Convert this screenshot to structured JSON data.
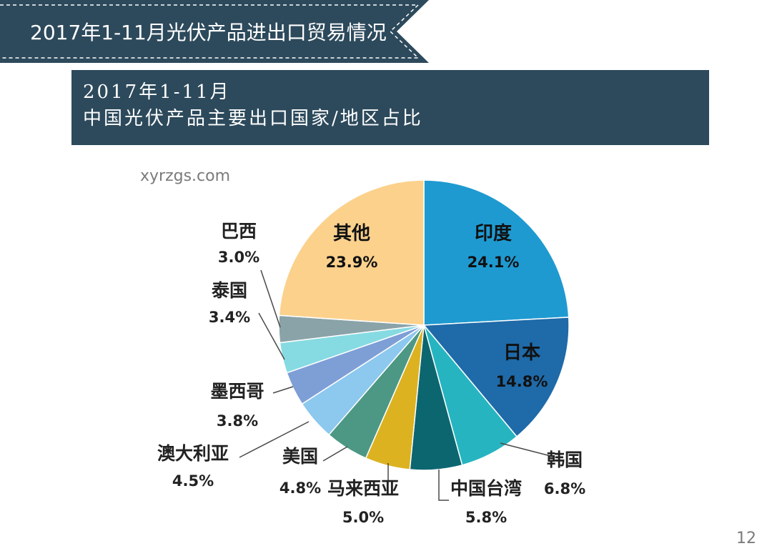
{
  "header": {
    "title": "2017年1-11月光伏产品进出口贸易情况",
    "colors": {
      "banner": "#2d4a5c",
      "dash": "#ffffff"
    }
  },
  "subtitle": {
    "line1": "2017年1-11月",
    "line2": "中国光伏产品主要出口国家/地区占比"
  },
  "watermark": "xyrzgs.com",
  "page_number": "12",
  "chart_data": {
    "type": "pie",
    "start_angle": "12 o'clock",
    "direction": "clockwise",
    "slices": [
      {
        "name": "印度",
        "value": 24.1,
        "value_label": "24.1%",
        "color": "#1f9ad1",
        "label_color": "#111111"
      },
      {
        "name": "日本",
        "value": 14.8,
        "value_label": "14.8%",
        "color": "#1f6aa8",
        "label_color": "#111111"
      },
      {
        "name": "韩国",
        "value": 6.8,
        "value_label": "6.8%",
        "color": "#26b5c0",
        "label_color": "#222222"
      },
      {
        "name": "中国台湾",
        "value": 5.8,
        "value_label": "5.8%",
        "color": "#0c6670",
        "label_color": "#222222"
      },
      {
        "name": "马来西亚",
        "value": 5.0,
        "value_label": "5.0%",
        "color": "#ddb221",
        "label_color": "#222222"
      },
      {
        "name": "美国",
        "value": 4.8,
        "value_label": "4.8%",
        "color": "#4c9884",
        "label_color": "#222222"
      },
      {
        "name": "澳大利亚",
        "value": 4.5,
        "value_label": "4.5%",
        "color": "#8dc8ee",
        "label_color": "#222222"
      },
      {
        "name": "墨西哥",
        "value": 3.8,
        "value_label": "3.8%",
        "color": "#7e9ed6",
        "label_color": "#222222"
      },
      {
        "name": "泰国",
        "value": 3.4,
        "value_label": "3.4%",
        "color": "#86dbe2",
        "label_color": "#222222"
      },
      {
        "name": "巴西",
        "value": 3.0,
        "value_label": "3.0%",
        "color": "#8aa3a8",
        "label_color": "#222222"
      },
      {
        "name": "其他",
        "value": 23.9,
        "value_label": "23.9%",
        "color": "#fbd18c",
        "label_color": "#111111"
      }
    ]
  }
}
